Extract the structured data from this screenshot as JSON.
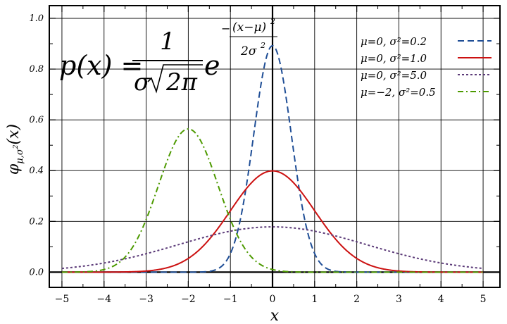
{
  "chart_data": {
    "type": "line",
    "title": "",
    "xlabel": "x",
    "ylabel": "φμ,σ²(x)",
    "ylabel_parts": {
      "main": "φ",
      "sub": "μ,σ",
      "sup": "2",
      "arg": "(x)"
    },
    "xlim": [
      -5.3,
      5.4
    ],
    "ylim": [
      -0.06,
      1.05
    ],
    "xticks": [
      -5,
      -4,
      -3,
      -2,
      -1,
      0,
      1,
      2,
      3,
      4,
      5
    ],
    "xtick_labels": [
      "−5",
      "−4",
      "−3",
      "−2",
      "−1",
      "0",
      "1",
      "2",
      "3",
      "4",
      "5"
    ],
    "yticks": [
      0.0,
      0.2,
      0.4,
      0.6,
      0.8,
      1.0
    ],
    "ytick_labels": [
      "0.0",
      "0.2",
      "0.4",
      "0.6",
      "0.8",
      "1.0"
    ],
    "grid": true,
    "legend_position": "top-right",
    "formula": {
      "lhs": "p(x) =",
      "numerator": "1",
      "denominator_sigma": "σ",
      "denominator_root": "2π",
      "base": "e",
      "exp_numerator": "(x−μ)",
      "exp_numerator_sup": "2",
      "exp_denominator": "2σ",
      "exp_denominator_sup": "2",
      "exp_sign": "−"
    },
    "series": [
      {
        "name": "μ=0,    σ²=0.2",
        "mu": 0,
        "variance": 0.2,
        "color": "#1f4e96",
        "style": "dashed"
      },
      {
        "name": "μ=0,    σ²=1.0",
        "mu": 0,
        "variance": 1.0,
        "color": "#cc1111",
        "style": "solid"
      },
      {
        "name": "μ=0,    σ²=5.0",
        "mu": 0,
        "variance": 5.0,
        "color": "#5b3a78",
        "style": "dotted"
      },
      {
        "name": "μ=−2, σ²=0.5",
        "mu": -2,
        "variance": 0.5,
        "color": "#4d9a00",
        "style": "dashdot"
      }
    ]
  }
}
